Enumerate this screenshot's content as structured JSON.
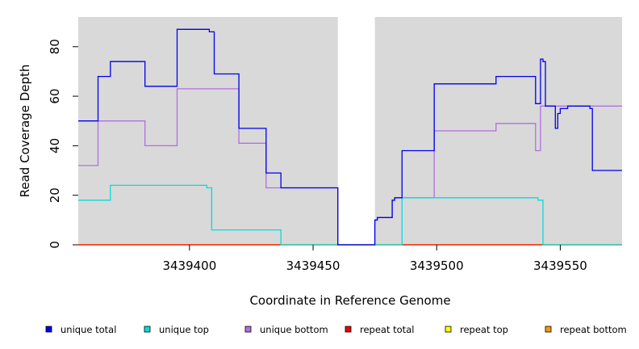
{
  "chart_data": {
    "type": "line",
    "step": true,
    "title": "",
    "xlabel": "Coordinate in Reference Genome",
    "ylabel": "Read Coverage Depth",
    "xlim": [
      3439355,
      3439575
    ],
    "ylim": [
      0,
      92
    ],
    "xticks": [
      3439400,
      3439450,
      3439500,
      3439550
    ],
    "yticks": [
      0,
      20,
      40,
      60,
      80
    ],
    "xtick_labels": [
      "3439400",
      "3439450",
      "3439500",
      "3439550"
    ],
    "ytick_labels": [
      "0",
      "20",
      "40",
      "60",
      "80"
    ],
    "background": "#d9d9d9",
    "gap_region": [
      3439460,
      3439475
    ],
    "legend_placement": "bottom",
    "series": [
      {
        "name": "unique total",
        "color": "#0000ee",
        "points": [
          [
            3439355,
            50
          ],
          [
            3439363,
            50
          ],
          [
            3439363,
            68
          ],
          [
            3439368,
            68
          ],
          [
            3439368,
            74
          ],
          [
            3439382,
            74
          ],
          [
            3439382,
            64
          ],
          [
            3439395,
            64
          ],
          [
            3439395,
            87
          ],
          [
            3439408,
            87
          ],
          [
            3439408,
            86
          ],
          [
            3439410,
            86
          ],
          [
            3439410,
            69
          ],
          [
            3439420,
            69
          ],
          [
            3439420,
            47
          ],
          [
            3439431,
            47
          ],
          [
            3439431,
            29
          ],
          [
            3439437,
            29
          ],
          [
            3439437,
            23
          ],
          [
            3439460,
            23
          ],
          [
            3439460,
            0
          ],
          [
            3439475,
            0
          ],
          [
            3439475,
            10
          ],
          [
            3439476,
            10
          ],
          [
            3439476,
            11
          ],
          [
            3439482,
            11
          ],
          [
            3439482,
            18
          ],
          [
            3439483,
            18
          ],
          [
            3439483,
            19
          ],
          [
            3439486,
            19
          ],
          [
            3439486,
            38
          ],
          [
            3439499,
            38
          ],
          [
            3439499,
            65
          ],
          [
            3439524,
            65
          ],
          [
            3439524,
            68
          ],
          [
            3439540,
            68
          ],
          [
            3439540,
            57
          ],
          [
            3439542,
            57
          ],
          [
            3439542,
            75
          ],
          [
            3439543,
            75
          ],
          [
            3439543,
            74
          ],
          [
            3439544,
            74
          ],
          [
            3439544,
            56
          ],
          [
            3439548,
            56
          ],
          [
            3439548,
            47
          ],
          [
            3439549,
            47
          ],
          [
            3439549,
            53
          ],
          [
            3439550,
            53
          ],
          [
            3439550,
            55
          ],
          [
            3439553,
            55
          ],
          [
            3439553,
            56
          ],
          [
            3439562,
            56
          ],
          [
            3439562,
            55
          ],
          [
            3439563,
            55
          ],
          [
            3439563,
            30
          ],
          [
            3439575,
            30
          ]
        ]
      },
      {
        "name": "unique top",
        "color": "#00dddd",
        "points": [
          [
            3439355,
            18
          ],
          [
            3439368,
            18
          ],
          [
            3439368,
            24
          ],
          [
            3439407,
            24
          ],
          [
            3439407,
            23
          ],
          [
            3439409,
            23
          ],
          [
            3439409,
            6
          ],
          [
            3439437,
            6
          ],
          [
            3439437,
            0
          ],
          [
            3439460,
            0
          ],
          [
            3439486,
            0
          ],
          [
            3439486,
            19
          ],
          [
            3439541,
            19
          ],
          [
            3439541,
            18
          ],
          [
            3439543,
            18
          ],
          [
            3439543,
            0
          ],
          [
            3439575,
            0
          ]
        ]
      },
      {
        "name": "unique bottom",
        "color": "#b070e0",
        "points": [
          [
            3439355,
            32
          ],
          [
            3439363,
            32
          ],
          [
            3439363,
            50
          ],
          [
            3439382,
            50
          ],
          [
            3439382,
            40
          ],
          [
            3439395,
            40
          ],
          [
            3439395,
            63
          ],
          [
            3439420,
            63
          ],
          [
            3439420,
            41
          ],
          [
            3439431,
            41
          ],
          [
            3439431,
            23
          ],
          [
            3439460,
            23
          ],
          [
            3439460,
            0
          ],
          [
            3439475,
            0
          ],
          [
            3439475,
            10
          ],
          [
            3439476,
            10
          ],
          [
            3439476,
            11
          ],
          [
            3439482,
            11
          ],
          [
            3439482,
            18
          ],
          [
            3439483,
            18
          ],
          [
            3439483,
            19
          ],
          [
            3439499,
            19
          ],
          [
            3439499,
            46
          ],
          [
            3439524,
            46
          ],
          [
            3439524,
            49
          ],
          [
            3439540,
            49
          ],
          [
            3439540,
            38
          ],
          [
            3439542,
            38
          ],
          [
            3439542,
            56
          ],
          [
            3439575,
            56
          ]
        ]
      },
      {
        "name": "repeat total",
        "color": "#ee0000",
        "points": [
          [
            3439355,
            0
          ],
          [
            3439575,
            0
          ]
        ]
      },
      {
        "name": "repeat top",
        "color": "#ffff00",
        "points": [
          [
            3439355,
            0
          ],
          [
            3439575,
            0
          ]
        ]
      },
      {
        "name": "repeat bottom",
        "color": "#ff9900",
        "points": [
          [
            3439355,
            0
          ],
          [
            3439575,
            0
          ]
        ]
      }
    ]
  }
}
